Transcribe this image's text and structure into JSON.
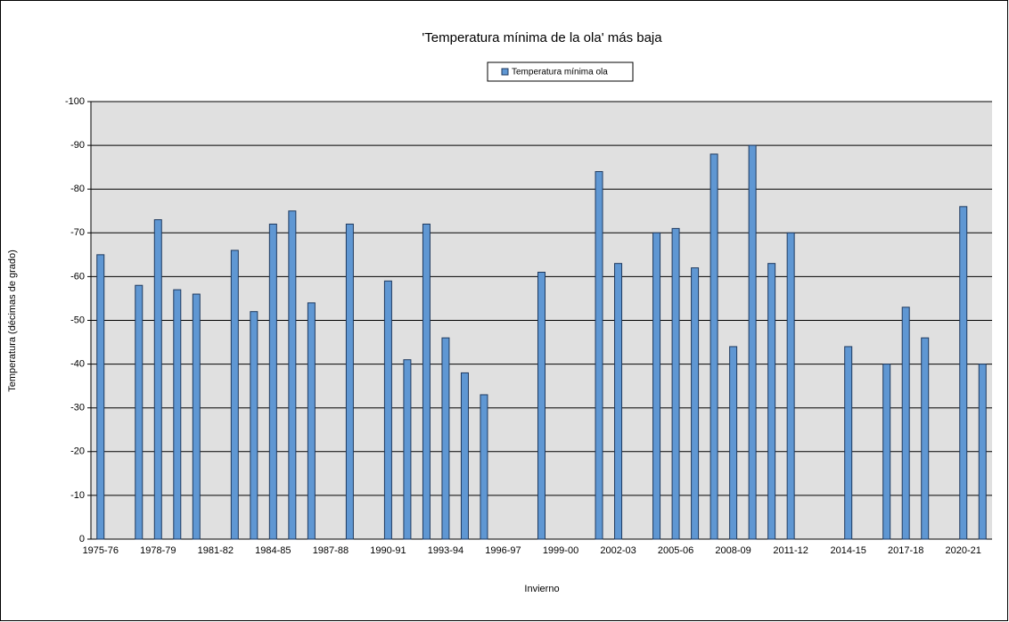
{
  "chart_data": {
    "type": "bar",
    "title": "'Temperatura mínima de la ola' más baja",
    "x_label": "Invierno",
    "y_label": "Temperatura (décimas de grado)",
    "categories": [
      "1975-76",
      null,
      null,
      "1978-79",
      null,
      null,
      "1981-82",
      null,
      null,
      "1984-85",
      null,
      null,
      "1987-88",
      null,
      null,
      "1990-91",
      null,
      null,
      "1993-94",
      null,
      null,
      "1996-97",
      null,
      null,
      "1999-00",
      null,
      null,
      "2002-03",
      null,
      null,
      "2005-06",
      null,
      null,
      "2008-09",
      null,
      null,
      "2011-12",
      null,
      null,
      "2014-15",
      null,
      null,
      "2017-18",
      null,
      null,
      "2020-21",
      null
    ],
    "series": [
      {
        "name": "Temperatura mínima ola",
        "color": "#5f97d3",
        "values": [
          -65,
          null,
          -58,
          -73,
          -57,
          -56,
          null,
          -66,
          -52,
          -72,
          -75,
          -54,
          null,
          -72,
          null,
          -59,
          -41,
          -72,
          -46,
          -38,
          -33,
          null,
          null,
          -61,
          null,
          null,
          -84,
          -63,
          null,
          -70,
          -71,
          -62,
          -88,
          -44,
          -90,
          -63,
          -70,
          null,
          null,
          -44,
          null,
          -40,
          -53,
          -46,
          null,
          -76,
          -40
        ]
      }
    ],
    "ylim": [
      0,
      -100
    ],
    "yticks": [
      0,
      -10,
      -20,
      -30,
      -40,
      -50,
      -60,
      -70,
      -80,
      -90,
      -100
    ],
    "grid": true,
    "legend": "top"
  }
}
